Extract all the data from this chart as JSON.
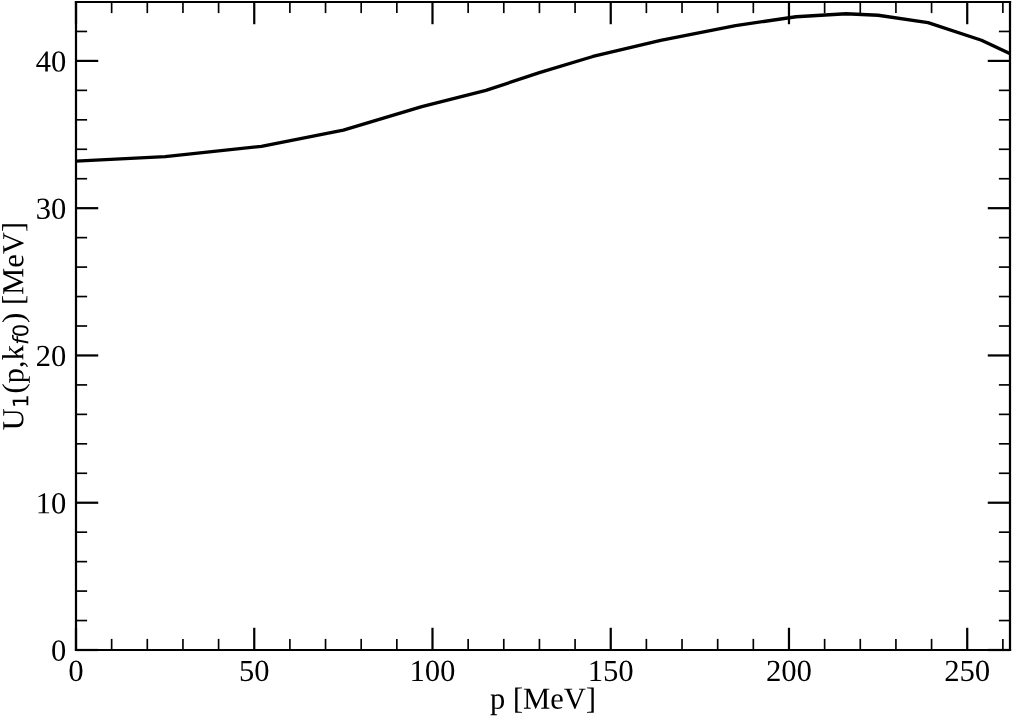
{
  "chart_data": {
    "type": "line",
    "xlabel": "p [MeV]",
    "ylabel": "U$_{1}$(p,k$_{f0}$) [MeV]",
    "x": [
      0,
      25,
      52,
      75,
      97,
      115,
      130,
      145,
      164,
      185,
      202,
      216,
      225,
      239,
      254,
      262
    ],
    "series": [
      {
        "color": "#000000",
        "values": [
          33.2,
          33.5,
          34.2,
          35.3,
          36.9,
          38.0,
          39.2,
          40.3,
          41.4,
          42.4,
          43.0,
          43.2,
          43.1,
          42.6,
          41.4,
          40.5
        ]
      }
    ],
    "xlim": [
      0,
      262
    ],
    "ylim": [
      0,
      44
    ],
    "xticks": [
      0,
      {
        "value": 10,
        "label": null
      },
      {
        "value": 20,
        "label": null
      },
      {
        "value": 30,
        "label": null
      },
      {
        "value": 40,
        "label": null
      },
      50,
      {
        "value": 60,
        "label": null
      },
      {
        "value": 70,
        "label": null
      },
      {
        "value": 80,
        "label": null
      },
      {
        "value": 90,
        "label": null
      },
      100,
      {
        "value": 110,
        "label": null
      },
      {
        "value": 120,
        "label": null
      },
      {
        "value": 130,
        "label": null
      },
      {
        "value": 140,
        "label": null
      },
      150,
      {
        "value": 160,
        "label": null
      },
      {
        "value": 170,
        "label": null
      },
      {
        "value": 180,
        "label": null
      },
      {
        "value": 190,
        "label": null
      },
      200,
      {
        "value": 210,
        "label": null
      },
      {
        "value": 220,
        "label": null
      },
      {
        "value": 230,
        "label": null
      },
      {
        "value": 240,
        "label": null
      },
      250,
      {
        "value": 260,
        "label": null
      }
    ],
    "yticks": [
      0,
      {
        "value": 2,
        "label": null
      },
      {
        "value": 4,
        "label": null
      },
      {
        "value": 6,
        "label": null
      },
      {
        "value": 8,
        "label": null
      },
      10,
      {
        "value": 12,
        "label": null
      },
      {
        "value": 14,
        "label": null
      },
      {
        "value": 16,
        "label": null
      },
      {
        "value": 18,
        "label": null
      },
      20,
      {
        "value": 22,
        "label": null
      },
      {
        "value": 24,
        "label": null
      },
      {
        "value": 26,
        "label": null
      },
      {
        "value": 28,
        "label": null
      },
      30,
      {
        "value": 32,
        "label": null
      },
      {
        "value": 34,
        "label": null
      },
      {
        "value": 36,
        "label": null
      },
      {
        "value": 38,
        "label": null
      },
      40,
      {
        "value": 42,
        "label": null
      },
      {
        "value": 44,
        "label": null
      }
    ],
    "grid": false,
    "legend": false,
    "marker": "none",
    "line_style": "solid"
  }
}
